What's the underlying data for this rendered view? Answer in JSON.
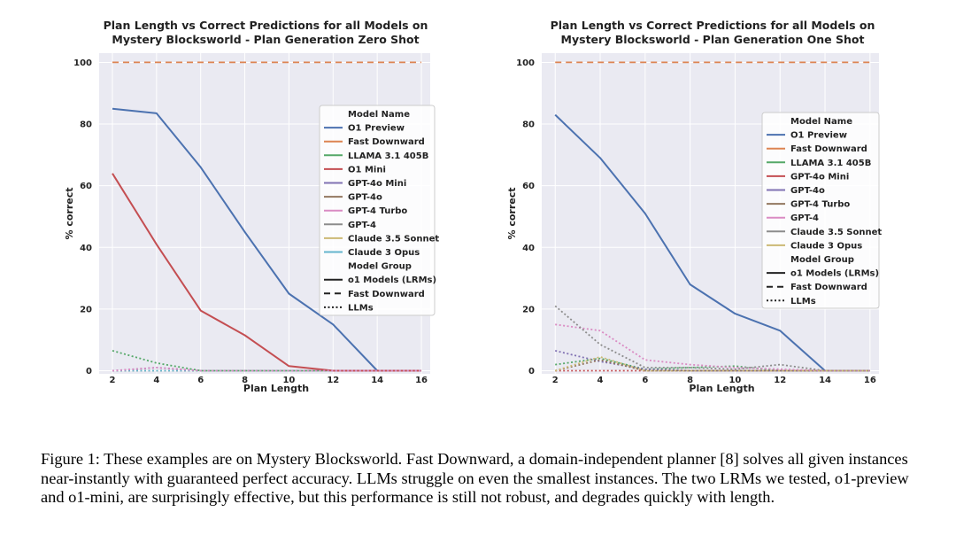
{
  "chart_data": [
    {
      "type": "line",
      "title": [
        "Plan Length vs Correct Predictions for all Models on",
        "Mystery Blocksworld - Plan Generation Zero Shot"
      ],
      "xlabel": "Plan Length",
      "ylabel": "% correct",
      "xlim": [
        1.4,
        16.4
      ],
      "ylim": [
        -1,
        103
      ],
      "xticks": [
        2,
        4,
        6,
        8,
        10,
        12,
        14,
        16
      ],
      "yticks": [
        0,
        20,
        40,
        60,
        80,
        100
      ],
      "grid": true,
      "legend_position": "upper-right",
      "legend_title": "Model Name",
      "legend_group_title": "Model Group",
      "groups": [
        {
          "name": "o1 Models (LRMs)",
          "dash": "solid"
        },
        {
          "name": "Fast Downward",
          "dash": "dashed"
        },
        {
          "name": "LLMs",
          "dash": "dotted"
        }
      ],
      "series": [
        {
          "name": "O1 Preview",
          "color": "#4c72b0",
          "dash": "solid",
          "x": [
            2,
            4,
            6,
            8,
            10,
            12,
            14,
            16
          ],
          "y": [
            85,
            83.5,
            66,
            45,
            25,
            15,
            0,
            0
          ]
        },
        {
          "name": "Fast Downward",
          "color": "#dd8452",
          "dash": "dashed",
          "x": [
            2,
            4,
            6,
            8,
            10,
            12,
            14,
            16
          ],
          "y": [
            100,
            100,
            100,
            100,
            100,
            100,
            100,
            100
          ]
        },
        {
          "name": "LLAMA 3.1 405B",
          "color": "#55a868",
          "dash": "dotted",
          "x": [
            2,
            4,
            6,
            8,
            10,
            12,
            14,
            16
          ],
          "y": [
            6.5,
            2.5,
            0,
            0,
            0,
            0,
            0,
            0
          ]
        },
        {
          "name": "O1 Mini",
          "color": "#c44e52",
          "dash": "solid",
          "x": [
            2,
            4,
            6,
            8,
            10,
            12,
            14,
            16
          ],
          "y": [
            64,
            41,
            19.5,
            11.5,
            1.5,
            0,
            0,
            0
          ]
        },
        {
          "name": "GPT-4o Mini",
          "color": "#8172b3",
          "dash": "dotted",
          "x": [
            2,
            4,
            6,
            8,
            10,
            12,
            14,
            16
          ],
          "y": [
            0,
            1,
            0,
            0,
            0,
            0,
            0,
            0
          ]
        },
        {
          "name": "GPT-4o",
          "color": "#937860",
          "dash": "dotted",
          "x": [
            2,
            4,
            6,
            8,
            10,
            12,
            14,
            16
          ],
          "y": [
            0,
            0,
            0,
            0,
            0,
            0,
            0,
            0
          ]
        },
        {
          "name": "GPT-4 Turbo",
          "color": "#da8bc3",
          "dash": "dotted",
          "x": [
            2,
            4,
            6,
            8,
            10,
            12,
            14,
            16
          ],
          "y": [
            0,
            1,
            0,
            0,
            0,
            0,
            0,
            0
          ]
        },
        {
          "name": "GPT-4",
          "color": "#8c8c8c",
          "dash": "dotted",
          "x": [
            2,
            4,
            6,
            8,
            10,
            12,
            14,
            16
          ],
          "y": [
            0,
            0,
            0,
            0,
            0,
            0,
            0,
            0
          ]
        },
        {
          "name": "Claude 3.5 Sonnet",
          "color": "#ccb974",
          "dash": "dotted",
          "x": [
            2,
            4,
            6,
            8,
            10,
            12,
            14,
            16
          ],
          "y": [
            0,
            0,
            0,
            0,
            0,
            0,
            0,
            0
          ]
        },
        {
          "name": "Claude 3 Opus",
          "color": "#64b5cd",
          "dash": "dotted",
          "x": [
            2,
            4,
            6,
            8,
            10,
            12,
            14,
            16
          ],
          "y": [
            0,
            0,
            0,
            0,
            0,
            0,
            0,
            0
          ]
        }
      ]
    },
    {
      "type": "line",
      "title": [
        "Plan Length vs Correct Predictions for all Models on",
        "Mystery Blocksworld - Plan Generation One Shot"
      ],
      "xlabel": "Plan Length",
      "ylabel": "% correct",
      "xlim": [
        1.4,
        16.4
      ],
      "ylim": [
        -1,
        103
      ],
      "xticks": [
        2,
        4,
        6,
        8,
        10,
        12,
        14,
        16
      ],
      "yticks": [
        0,
        20,
        40,
        60,
        80,
        100
      ],
      "grid": true,
      "legend_position": "upper-right",
      "legend_title": "Model Name",
      "legend_group_title": "Model Group",
      "groups": [
        {
          "name": "o1 Models (LRMs)",
          "dash": "solid"
        },
        {
          "name": "Fast Downward",
          "dash": "dashed"
        },
        {
          "name": "LLMs",
          "dash": "dotted"
        }
      ],
      "series": [
        {
          "name": "O1 Preview",
          "color": "#4c72b0",
          "dash": "solid",
          "x": [
            2,
            4,
            6,
            8,
            10,
            12,
            14,
            16
          ],
          "y": [
            83,
            69,
            51,
            28,
            18.5,
            13,
            0,
            0
          ]
        },
        {
          "name": "Fast Downward",
          "color": "#dd8452",
          "dash": "dashed",
          "x": [
            2,
            4,
            6,
            8,
            10,
            12,
            14,
            16
          ],
          "y": [
            100,
            100,
            100,
            100,
            100,
            100,
            100,
            100
          ]
        },
        {
          "name": "LLAMA 3.1 405B",
          "color": "#55a868",
          "dash": "dotted",
          "x": [
            2,
            4,
            6,
            8,
            10,
            12,
            14,
            16
          ],
          "y": [
            2,
            4,
            0.5,
            1,
            1.5,
            0,
            0,
            0
          ]
        },
        {
          "name": "GPT-4o Mini",
          "color": "#c44e52",
          "dash": "dotted",
          "x": [
            2,
            4,
            6,
            8,
            10,
            12,
            14,
            16
          ],
          "y": [
            0,
            0,
            0,
            0,
            0,
            0,
            0,
            0
          ]
        },
        {
          "name": "GPT-4o",
          "color": "#8172b3",
          "dash": "dotted",
          "x": [
            2,
            4,
            6,
            8,
            10,
            12,
            14,
            16
          ],
          "y": [
            6.5,
            3,
            0.5,
            0,
            0,
            0,
            0,
            0
          ]
        },
        {
          "name": "GPT-4 Turbo",
          "color": "#937860",
          "dash": "dotted",
          "x": [
            2,
            4,
            6,
            8,
            10,
            12,
            14,
            16
          ],
          "y": [
            0,
            3.5,
            0,
            0,
            0,
            0,
            0,
            0
          ]
        },
        {
          "name": "GPT-4",
          "color": "#da8bc3",
          "dash": "dotted",
          "x": [
            2,
            4,
            6,
            8,
            10,
            12,
            14,
            16
          ],
          "y": [
            15,
            13,
            3.5,
            2,
            1,
            0.5,
            0,
            0
          ]
        },
        {
          "name": "Claude 3.5 Sonnet",
          "color": "#8c8c8c",
          "dash": "dotted",
          "x": [
            2,
            4,
            6,
            8,
            10,
            12,
            14,
            16
          ],
          "y": [
            21,
            8.5,
            1,
            1,
            0.5,
            2,
            0,
            0
          ]
        },
        {
          "name": "Claude 3 Opus",
          "color": "#ccb974",
          "dash": "dotted",
          "x": [
            2,
            4,
            6,
            8,
            10,
            12,
            14,
            16
          ],
          "y": [
            0,
            4.5,
            0,
            0,
            0,
            0,
            0,
            0
          ]
        }
      ]
    }
  ],
  "caption": "Figure 1: These examples are on Mystery Blocksworld. Fast Downward, a domain-independent planner [8] solves all given instances near-instantly with guaranteed perfect accuracy. LLMs struggle on even the smallest instances. The two LRMs we tested, o1-preview and o1-mini, are surprisingly effective, but this performance is still not robust, and degrades quickly with length.",
  "style": {
    "plot_background": "#eaeaf2",
    "grid_color": "#ffffff",
    "legend_background": "#ffffff",
    "legend_border": "#cccccc",
    "text_color": "#222222"
  }
}
